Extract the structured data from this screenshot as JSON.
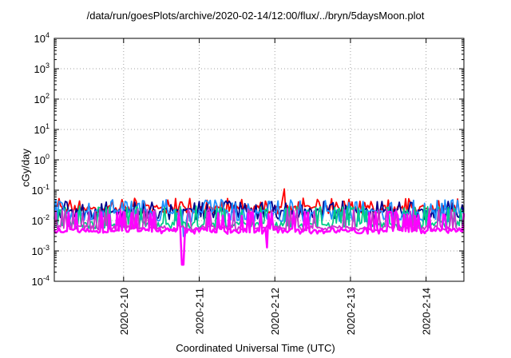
{
  "chart_data": {
    "type": "line",
    "title": "/data/run/goesPlots/archive/2020-02-14/12:00/flux/../bryn/5daysMoon.plot",
    "xlabel": "Coordinated Universal Time (UTC)",
    "ylabel": "cGy/day",
    "y_scale": "log",
    "ylim": [
      0.0001,
      10000
    ],
    "y_ticks": [
      {
        "base": "10",
        "exp": "-4"
      },
      {
        "base": "10",
        "exp": "-3"
      },
      {
        "base": "10",
        "exp": "-2"
      },
      {
        "base": "10",
        "exp": "-1"
      },
      {
        "base": "10",
        "exp": "0"
      },
      {
        "base": "10",
        "exp": "1"
      },
      {
        "base": "10",
        "exp": "2"
      },
      {
        "base": "10",
        "exp": "3"
      },
      {
        "base": "10",
        "exp": "4"
      }
    ],
    "x_range": [
      "2020-02-09 02:00",
      "2020-02-14 12:00"
    ],
    "x_ticks": [
      "2020-2-10",
      "2020-2-11",
      "2020-2-12",
      "2020-2-13",
      "2020-2-14"
    ],
    "grid": true,
    "series": [
      {
        "color": "#ff0000",
        "baseline": 0.028,
        "low": 0.018,
        "peak": 0.055,
        "dips": [],
        "spikes": [
          {
            "t": 3.05,
            "v": 0.11
          }
        ]
      },
      {
        "color": "#00008b",
        "baseline": 0.022,
        "low": 0.012,
        "peak": 0.045,
        "dips": [],
        "spikes": []
      },
      {
        "color": "#1e90ff",
        "baseline": 0.02,
        "low": 0.01,
        "peak": 0.05,
        "dips": [
          {
            "t": 1.72,
            "v": 0.003
          }
        ],
        "spikes": []
      },
      {
        "color": "#00cc88",
        "baseline": 0.008,
        "low": 0.006,
        "peak": 0.03,
        "dips": [],
        "spikes": []
      },
      {
        "color": "#cc33cc",
        "baseline": 0.006,
        "low": 0.005,
        "peak": 0.025,
        "dips": [],
        "spikes": []
      },
      {
        "color": "#ff00ff",
        "baseline": 0.005,
        "low": 0.004,
        "peak": 0.02,
        "dips": [
          {
            "t": 1.7,
            "v": 0.00035
          },
          {
            "t": 2.82,
            "v": 0.0013
          }
        ],
        "spikes": []
      }
    ]
  }
}
